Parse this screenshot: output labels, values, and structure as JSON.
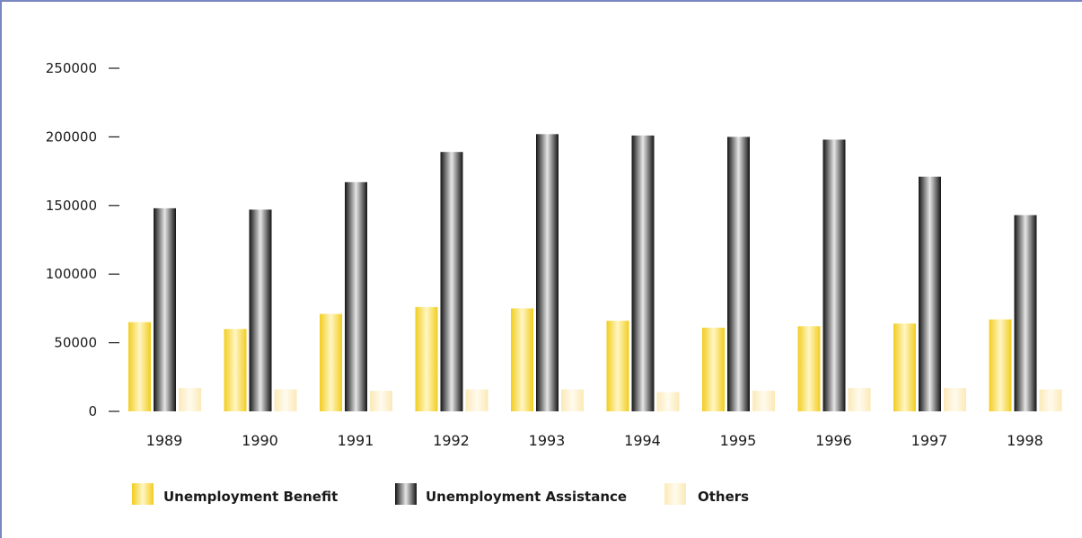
{
  "colors": {
    "frame": "#7a86c2",
    "benefit_light": "#fff6c4",
    "benefit_dark": "#f2cd1f",
    "assistance_light": "#e6e6e6",
    "assistance_dark": "#141414",
    "others_light": "#fffbee",
    "others_dark": "#fbe9b8"
  },
  "chart_data": {
    "type": "bar",
    "title": "",
    "xlabel": "",
    "ylabel": "",
    "ylim": [
      0,
      250000
    ],
    "y_ticks": [
      "250000",
      "200000",
      "150000",
      "100000",
      "50000",
      "0"
    ],
    "y_tick_values": [
      250000,
      200000,
      150000,
      100000,
      50000,
      0
    ],
    "categories": [
      "1989",
      "1990",
      "1991",
      "1992",
      "1993",
      "1994",
      "1995",
      "1996",
      "1997",
      "1998"
    ],
    "legend_position": "bottom-left",
    "grid": false,
    "series": [
      {
        "name": "Unemployment Benefit",
        "values": [
          65000,
          60000,
          71000,
          76000,
          75000,
          66000,
          61000,
          62000,
          64000,
          67000
        ]
      },
      {
        "name": "Unemployment Assistance",
        "values": [
          148000,
          147000,
          167000,
          189000,
          202000,
          201000,
          200000,
          198000,
          171000,
          143000
        ]
      },
      {
        "name": "Others",
        "values": [
          17000,
          16000,
          15000,
          16000,
          16000,
          14000,
          15000,
          17000,
          17000,
          16000
        ]
      }
    ]
  }
}
